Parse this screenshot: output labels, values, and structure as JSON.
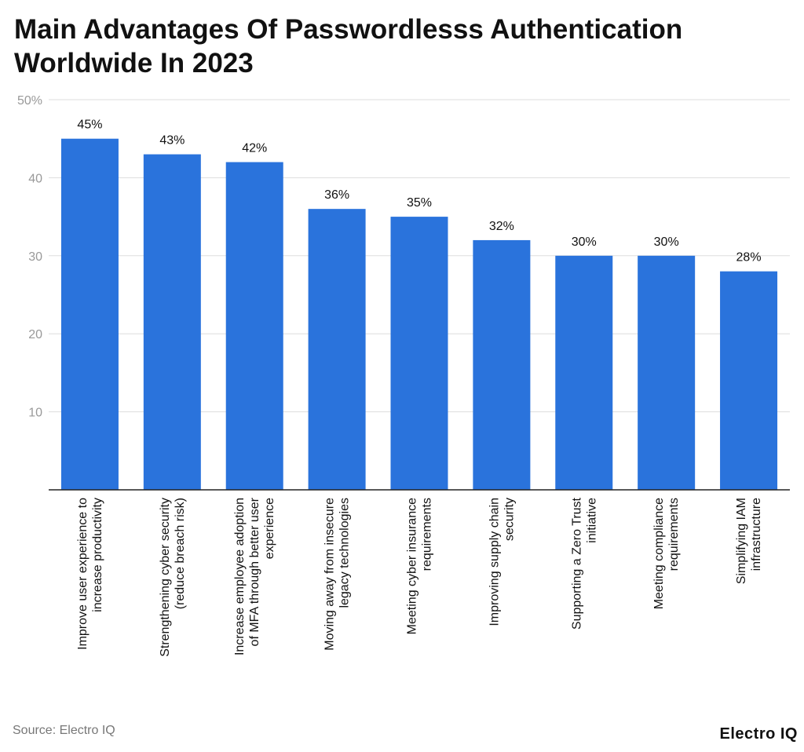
{
  "chart_data": {
    "type": "bar",
    "title": "Main Advantages Of Passwordlesss Authentication Worldwide In 2023",
    "categories": [
      [
        "Improve user experience to",
        "increase productivity"
      ],
      [
        "Strengthening cyber security",
        "(reduce breach risk)"
      ],
      [
        "Increase employee adoption",
        "of MFA through better user",
        "experience"
      ],
      [
        "Moving away from insecure",
        "legacy technologies"
      ],
      [
        "Meeting cyber insurance",
        "requirements"
      ],
      [
        "Improving supply chain",
        "security"
      ],
      [
        "Supporting a Zero Trust",
        "initiative"
      ],
      [
        "Meeting compliance",
        "requirements"
      ],
      [
        "Simplifying IAM",
        "infrastructure"
      ]
    ],
    "values": [
      45,
      43,
      42,
      36,
      35,
      32,
      30,
      30,
      28
    ],
    "value_labels": [
      "45%",
      "43%",
      "42%",
      "36%",
      "35%",
      "32%",
      "30%",
      "30%",
      "28%"
    ],
    "yticks": [
      10,
      20,
      30,
      40
    ],
    "ytick_top_label": "50%",
    "ylim": [
      0,
      50
    ],
    "xlabel": "",
    "ylabel": "",
    "grid": true,
    "bar_color": "#2a73dc"
  },
  "footer": {
    "source": "Source: Electro IQ",
    "brand": "Electro IQ"
  }
}
